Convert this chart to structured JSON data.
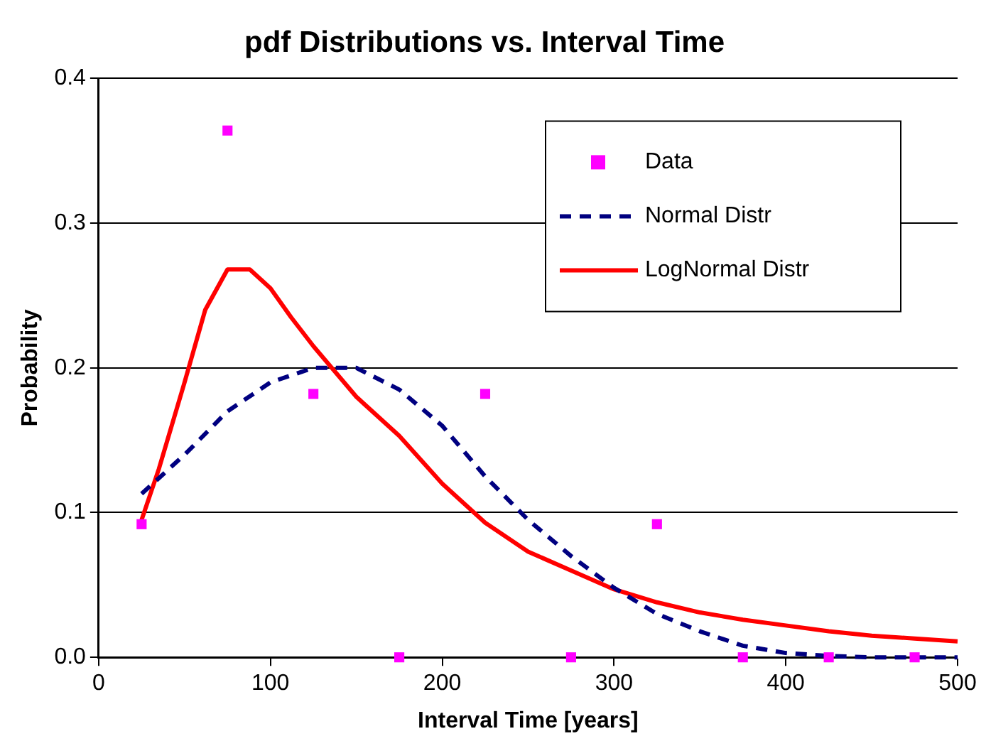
{
  "chart_data": {
    "type": "line",
    "title": "pdf Distributions vs. Interval Time",
    "xlabel": "Interval Time [years]",
    "ylabel": "Probability",
    "xlim": [
      0,
      500
    ],
    "xticks": [
      0,
      100,
      200,
      300,
      400,
      500
    ],
    "ylim": [
      0,
      0.4
    ],
    "yticks": [
      {
        "value": 0,
        "label": "0.0"
      },
      0.1,
      0.2,
      0.3,
      0.4
    ],
    "grid": "y",
    "legend": "top right",
    "series": [
      {
        "name": "Data",
        "type": "scatter",
        "marker": "square",
        "color": "#ff00ff",
        "x": [
          25,
          75,
          125,
          175,
          225,
          275,
          325,
          375,
          425,
          475
        ],
        "values": [
          0.092,
          0.364,
          0.182,
          0,
          0.182,
          0,
          0.092,
          0,
          0,
          0
        ]
      },
      {
        "name": "Normal Distr",
        "line_style": "dashed",
        "marker": "none",
        "color": "#000080",
        "x": [
          25,
          50,
          75,
          100,
          125,
          150,
          175,
          200,
          225,
          250,
          275,
          300,
          325,
          350,
          375,
          400,
          425,
          450,
          475,
          500
        ],
        "values": [
          0.113,
          0.14,
          0.17,
          0.19,
          0.2,
          0.2,
          0.185,
          0.16,
          0.125,
          0.095,
          0.07,
          0.048,
          0.03,
          0.018,
          0.008,
          0.003,
          0.001,
          0,
          0,
          0
        ]
      },
      {
        "name": "LogNormal Distr",
        "line_style": "solid",
        "marker": "none",
        "color": "#ff0000",
        "x": [
          25,
          35,
          50,
          62,
          75,
          88,
          100,
          112,
          125,
          150,
          175,
          200,
          225,
          250,
          275,
          300,
          325,
          350,
          375,
          400,
          425,
          450,
          475,
          500
        ],
        "values": [
          0.095,
          0.13,
          0.19,
          0.24,
          0.268,
          0.268,
          0.255,
          0.235,
          0.215,
          0.18,
          0.153,
          0.12,
          0.093,
          0.073,
          0.06,
          0.047,
          0.038,
          0.031,
          0.026,
          0.022,
          0.018,
          0.015,
          0.013,
          0.011
        ]
      }
    ]
  }
}
